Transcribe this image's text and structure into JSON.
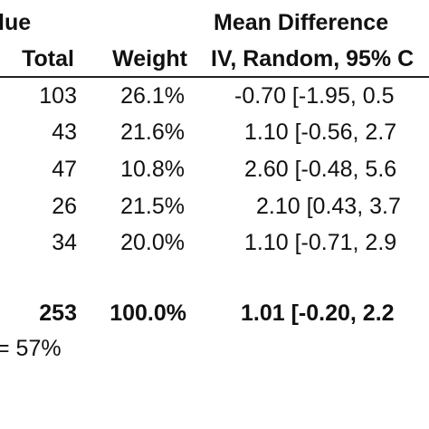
{
  "header": {
    "group_title_partial": "lue",
    "effect_title": "Mean Difference",
    "col_total": "Total",
    "col_weight": "Weight",
    "col_method_partial": "IV, Random, 95% C"
  },
  "rows": [
    {
      "total": "103",
      "weight": "26.1%",
      "ci": "-0.70 [-1.95, 0.5"
    },
    {
      "total": "43",
      "weight": "21.6%",
      "ci": "1.10 [-0.56, 2.7"
    },
    {
      "total": "47",
      "weight": "10.8%",
      "ci": "2.60 [-0.48, 5.6"
    },
    {
      "total": "26",
      "weight": "21.5%",
      "ci": "2.10 [0.43, 3.7"
    },
    {
      "total": "34",
      "weight": "20.0%",
      "ci": "1.10 [-0.71, 2.9"
    }
  ],
  "summary": {
    "total": "253",
    "weight": "100.0%",
    "ci": "1.01 [-0.20, 2.2"
  },
  "heterogeneity_partial": "= 57%"
}
